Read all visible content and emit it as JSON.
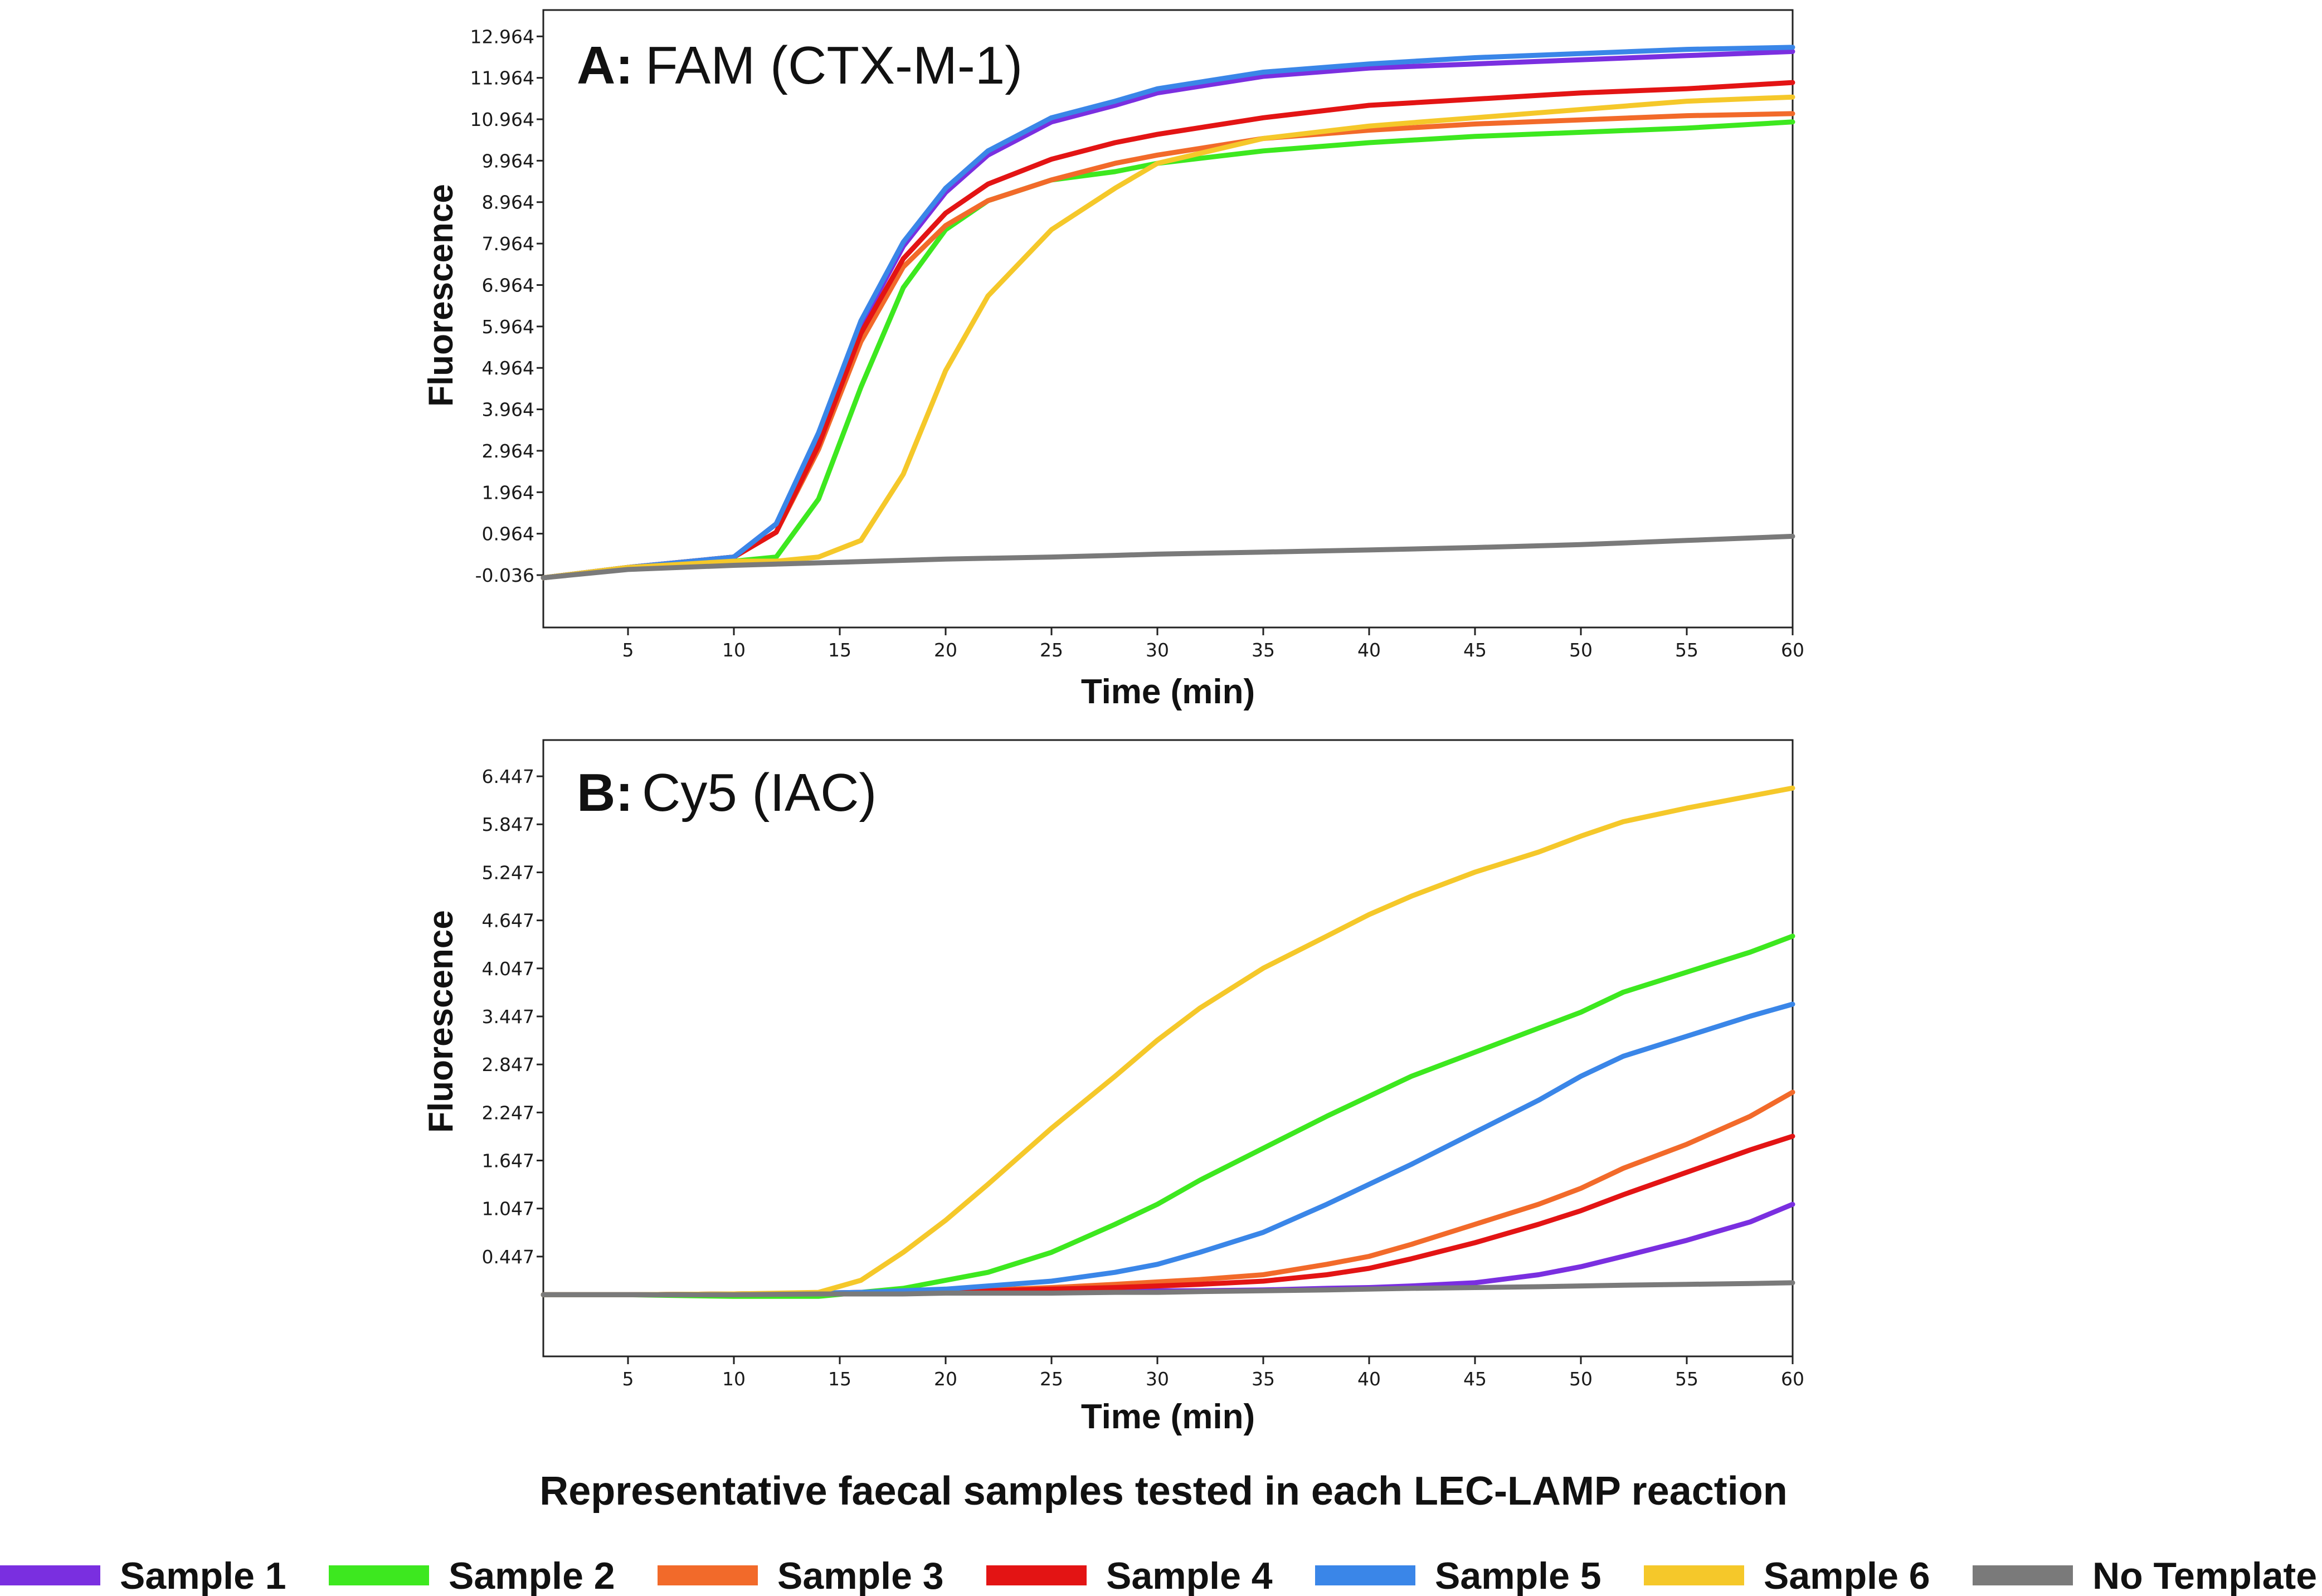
{
  "chart_data": [
    {
      "type": "line",
      "panel_letter": "A:",
      "title": "FAM (CTX-M-1)",
      "xlabel": "Time (min)",
      "ylabel": "Fluorescence",
      "xlim": [
        1,
        60
      ],
      "ylim": [
        -1.3,
        13.6
      ],
      "xticks": [
        5,
        10,
        15,
        20,
        25,
        30,
        35,
        40,
        45,
        50,
        55,
        60
      ],
      "yticks": [
        -0.036,
        0.964,
        1.964,
        2.964,
        3.964,
        4.964,
        5.964,
        6.964,
        7.964,
        8.964,
        9.964,
        10.964,
        11.964,
        12.964
      ],
      "ytick_labels": [
        "-0.036",
        "0.964",
        "1.964",
        "2.964",
        "3.964",
        "4.964",
        "5.964",
        "6.964",
        "7.964",
        "8.964",
        "9.964",
        "10.964",
        "11.964",
        "12.964"
      ],
      "x": [
        1,
        5,
        10,
        12,
        14,
        16,
        18,
        20,
        22,
        25,
        28,
        30,
        35,
        40,
        45,
        50,
        55,
        60
      ],
      "series": [
        {
          "name": "Sample 1",
          "color": "#7a2fe0",
          "values": [
            -0.1,
            0.15,
            0.4,
            1.2,
            3.3,
            6.0,
            7.9,
            9.2,
            10.1,
            10.9,
            11.3,
            11.6,
            12.0,
            12.2,
            12.3,
            12.4,
            12.5,
            12.6
          ]
        },
        {
          "name": "Sample 2",
          "color": "#3de81f",
          "values": [
            -0.1,
            0.15,
            0.3,
            0.4,
            1.8,
            4.5,
            6.9,
            8.3,
            9.0,
            9.5,
            9.7,
            9.9,
            10.2,
            10.4,
            10.55,
            10.65,
            10.75,
            10.9
          ]
        },
        {
          "name": "Sample 3",
          "color": "#f26a2a",
          "values": [
            -0.1,
            0.15,
            0.4,
            1.0,
            3.0,
            5.6,
            7.4,
            8.4,
            9.0,
            9.5,
            9.9,
            10.1,
            10.5,
            10.7,
            10.85,
            10.95,
            11.05,
            11.1
          ]
        },
        {
          "name": "Sample 4",
          "color": "#e31414",
          "values": [
            -0.1,
            0.15,
            0.4,
            1.0,
            3.1,
            5.8,
            7.6,
            8.7,
            9.4,
            10.0,
            10.4,
            10.6,
            11.0,
            11.3,
            11.45,
            11.6,
            11.7,
            11.85
          ]
        },
        {
          "name": "Sample 5",
          "color": "#3a86e8",
          "values": [
            -0.1,
            0.15,
            0.4,
            1.2,
            3.4,
            6.1,
            8.0,
            9.3,
            10.2,
            11.0,
            11.4,
            11.7,
            12.1,
            12.3,
            12.45,
            12.55,
            12.65,
            12.7
          ]
        },
        {
          "name": "Sample 6",
          "color": "#f5c82a",
          "values": [
            -0.1,
            0.15,
            0.3,
            0.3,
            0.4,
            0.8,
            2.4,
            4.9,
            6.7,
            8.3,
            9.3,
            9.9,
            10.5,
            10.8,
            11.0,
            11.2,
            11.4,
            11.5
          ]
        },
        {
          "name": "No Template",
          "color": "#7a7a7a",
          "values": [
            -0.1,
            0.1,
            0.2,
            0.23,
            0.26,
            0.29,
            0.32,
            0.35,
            0.37,
            0.4,
            0.44,
            0.47,
            0.52,
            0.57,
            0.63,
            0.7,
            0.8,
            0.9
          ]
        }
      ]
    },
    {
      "type": "line",
      "panel_letter": "B:",
      "title": "Cy5 (IAC)",
      "xlabel": "Time (min)",
      "ylabel": "Fluorescence",
      "xlim": [
        1,
        60
      ],
      "ylim": [
        -0.8,
        6.9
      ],
      "xticks": [
        5,
        10,
        15,
        20,
        25,
        30,
        35,
        40,
        45,
        50,
        55,
        60
      ],
      "yticks": [
        0.447,
        1.047,
        1.647,
        2.247,
        2.847,
        3.447,
        4.047,
        4.647,
        5.247,
        5.847,
        6.447
      ],
      "ytick_labels": [
        "0.447",
        "1.047",
        "1.647",
        "2.247",
        "2.847",
        "3.447",
        "4.047",
        "4.647",
        "5.247",
        "5.847",
        "6.447"
      ],
      "x": [
        1,
        5,
        10,
        14,
        16,
        18,
        20,
        22,
        25,
        28,
        30,
        32,
        35,
        38,
        40,
        42,
        45,
        48,
        50,
        52,
        55,
        58,
        60
      ],
      "series": [
        {
          "name": "Sample 1",
          "color": "#7a2fe0",
          "values": [
            -0.03,
            -0.03,
            -0.02,
            -0.02,
            -0.01,
            -0.01,
            0.0,
            0.0,
            0.01,
            0.01,
            0.02,
            0.02,
            0.03,
            0.05,
            0.06,
            0.08,
            0.12,
            0.22,
            0.32,
            0.45,
            0.65,
            0.88,
            1.1
          ]
        },
        {
          "name": "Sample 2",
          "color": "#3de81f",
          "values": [
            -0.03,
            -0.03,
            -0.05,
            -0.05,
            0.0,
            0.05,
            0.15,
            0.25,
            0.5,
            0.85,
            1.1,
            1.4,
            1.8,
            2.2,
            2.45,
            2.7,
            3.0,
            3.3,
            3.5,
            3.75,
            4.0,
            4.25,
            4.45
          ]
        },
        {
          "name": "Sample 3",
          "color": "#f26a2a",
          "values": [
            -0.03,
            -0.03,
            -0.02,
            -0.01,
            0.0,
            0.01,
            0.02,
            0.03,
            0.06,
            0.1,
            0.13,
            0.16,
            0.22,
            0.35,
            0.45,
            0.6,
            0.85,
            1.1,
            1.3,
            1.55,
            1.85,
            2.2,
            2.5
          ]
        },
        {
          "name": "Sample 4",
          "color": "#e31414",
          "values": [
            -0.03,
            -0.03,
            -0.02,
            -0.01,
            0.0,
            0.01,
            0.02,
            0.02,
            0.04,
            0.06,
            0.08,
            0.1,
            0.14,
            0.22,
            0.3,
            0.42,
            0.62,
            0.85,
            1.02,
            1.22,
            1.5,
            1.78,
            1.95
          ]
        },
        {
          "name": "Sample 5",
          "color": "#3a86e8",
          "values": [
            -0.03,
            -0.03,
            -0.02,
            -0.01,
            0.0,
            0.02,
            0.04,
            0.08,
            0.14,
            0.25,
            0.35,
            0.5,
            0.75,
            1.1,
            1.35,
            1.6,
            2.0,
            2.4,
            2.7,
            2.95,
            3.2,
            3.45,
            3.6
          ]
        },
        {
          "name": "Sample 6",
          "color": "#f5c82a",
          "values": [
            -0.03,
            -0.03,
            -0.02,
            0.0,
            0.15,
            0.5,
            0.9,
            1.35,
            2.05,
            2.7,
            3.15,
            3.55,
            4.05,
            4.45,
            4.72,
            4.95,
            5.25,
            5.5,
            5.7,
            5.88,
            6.05,
            6.2,
            6.3
          ]
        },
        {
          "name": "No Template",
          "color": "#7a7a7a",
          "values": [
            -0.03,
            -0.03,
            -0.03,
            -0.02,
            -0.02,
            -0.02,
            -0.01,
            -0.01,
            -0.01,
            0.0,
            0.0,
            0.01,
            0.02,
            0.03,
            0.04,
            0.05,
            0.06,
            0.07,
            0.08,
            0.09,
            0.1,
            0.11,
            0.12
          ]
        }
      ]
    }
  ],
  "caption": "Representative faecal samples tested in each LEC-LAMP reaction",
  "legend": [
    {
      "label": "Sample 1",
      "color": "#7a2fe0"
    },
    {
      "label": "Sample 2",
      "color": "#3de81f"
    },
    {
      "label": "Sample 3",
      "color": "#f26a2a"
    },
    {
      "label": "Sample 4",
      "color": "#e31414"
    },
    {
      "label": "Sample 5",
      "color": "#3a86e8"
    },
    {
      "label": "Sample 6",
      "color": "#f5c82a"
    },
    {
      "label": "No Template",
      "color": "#7a7a7a"
    }
  ]
}
